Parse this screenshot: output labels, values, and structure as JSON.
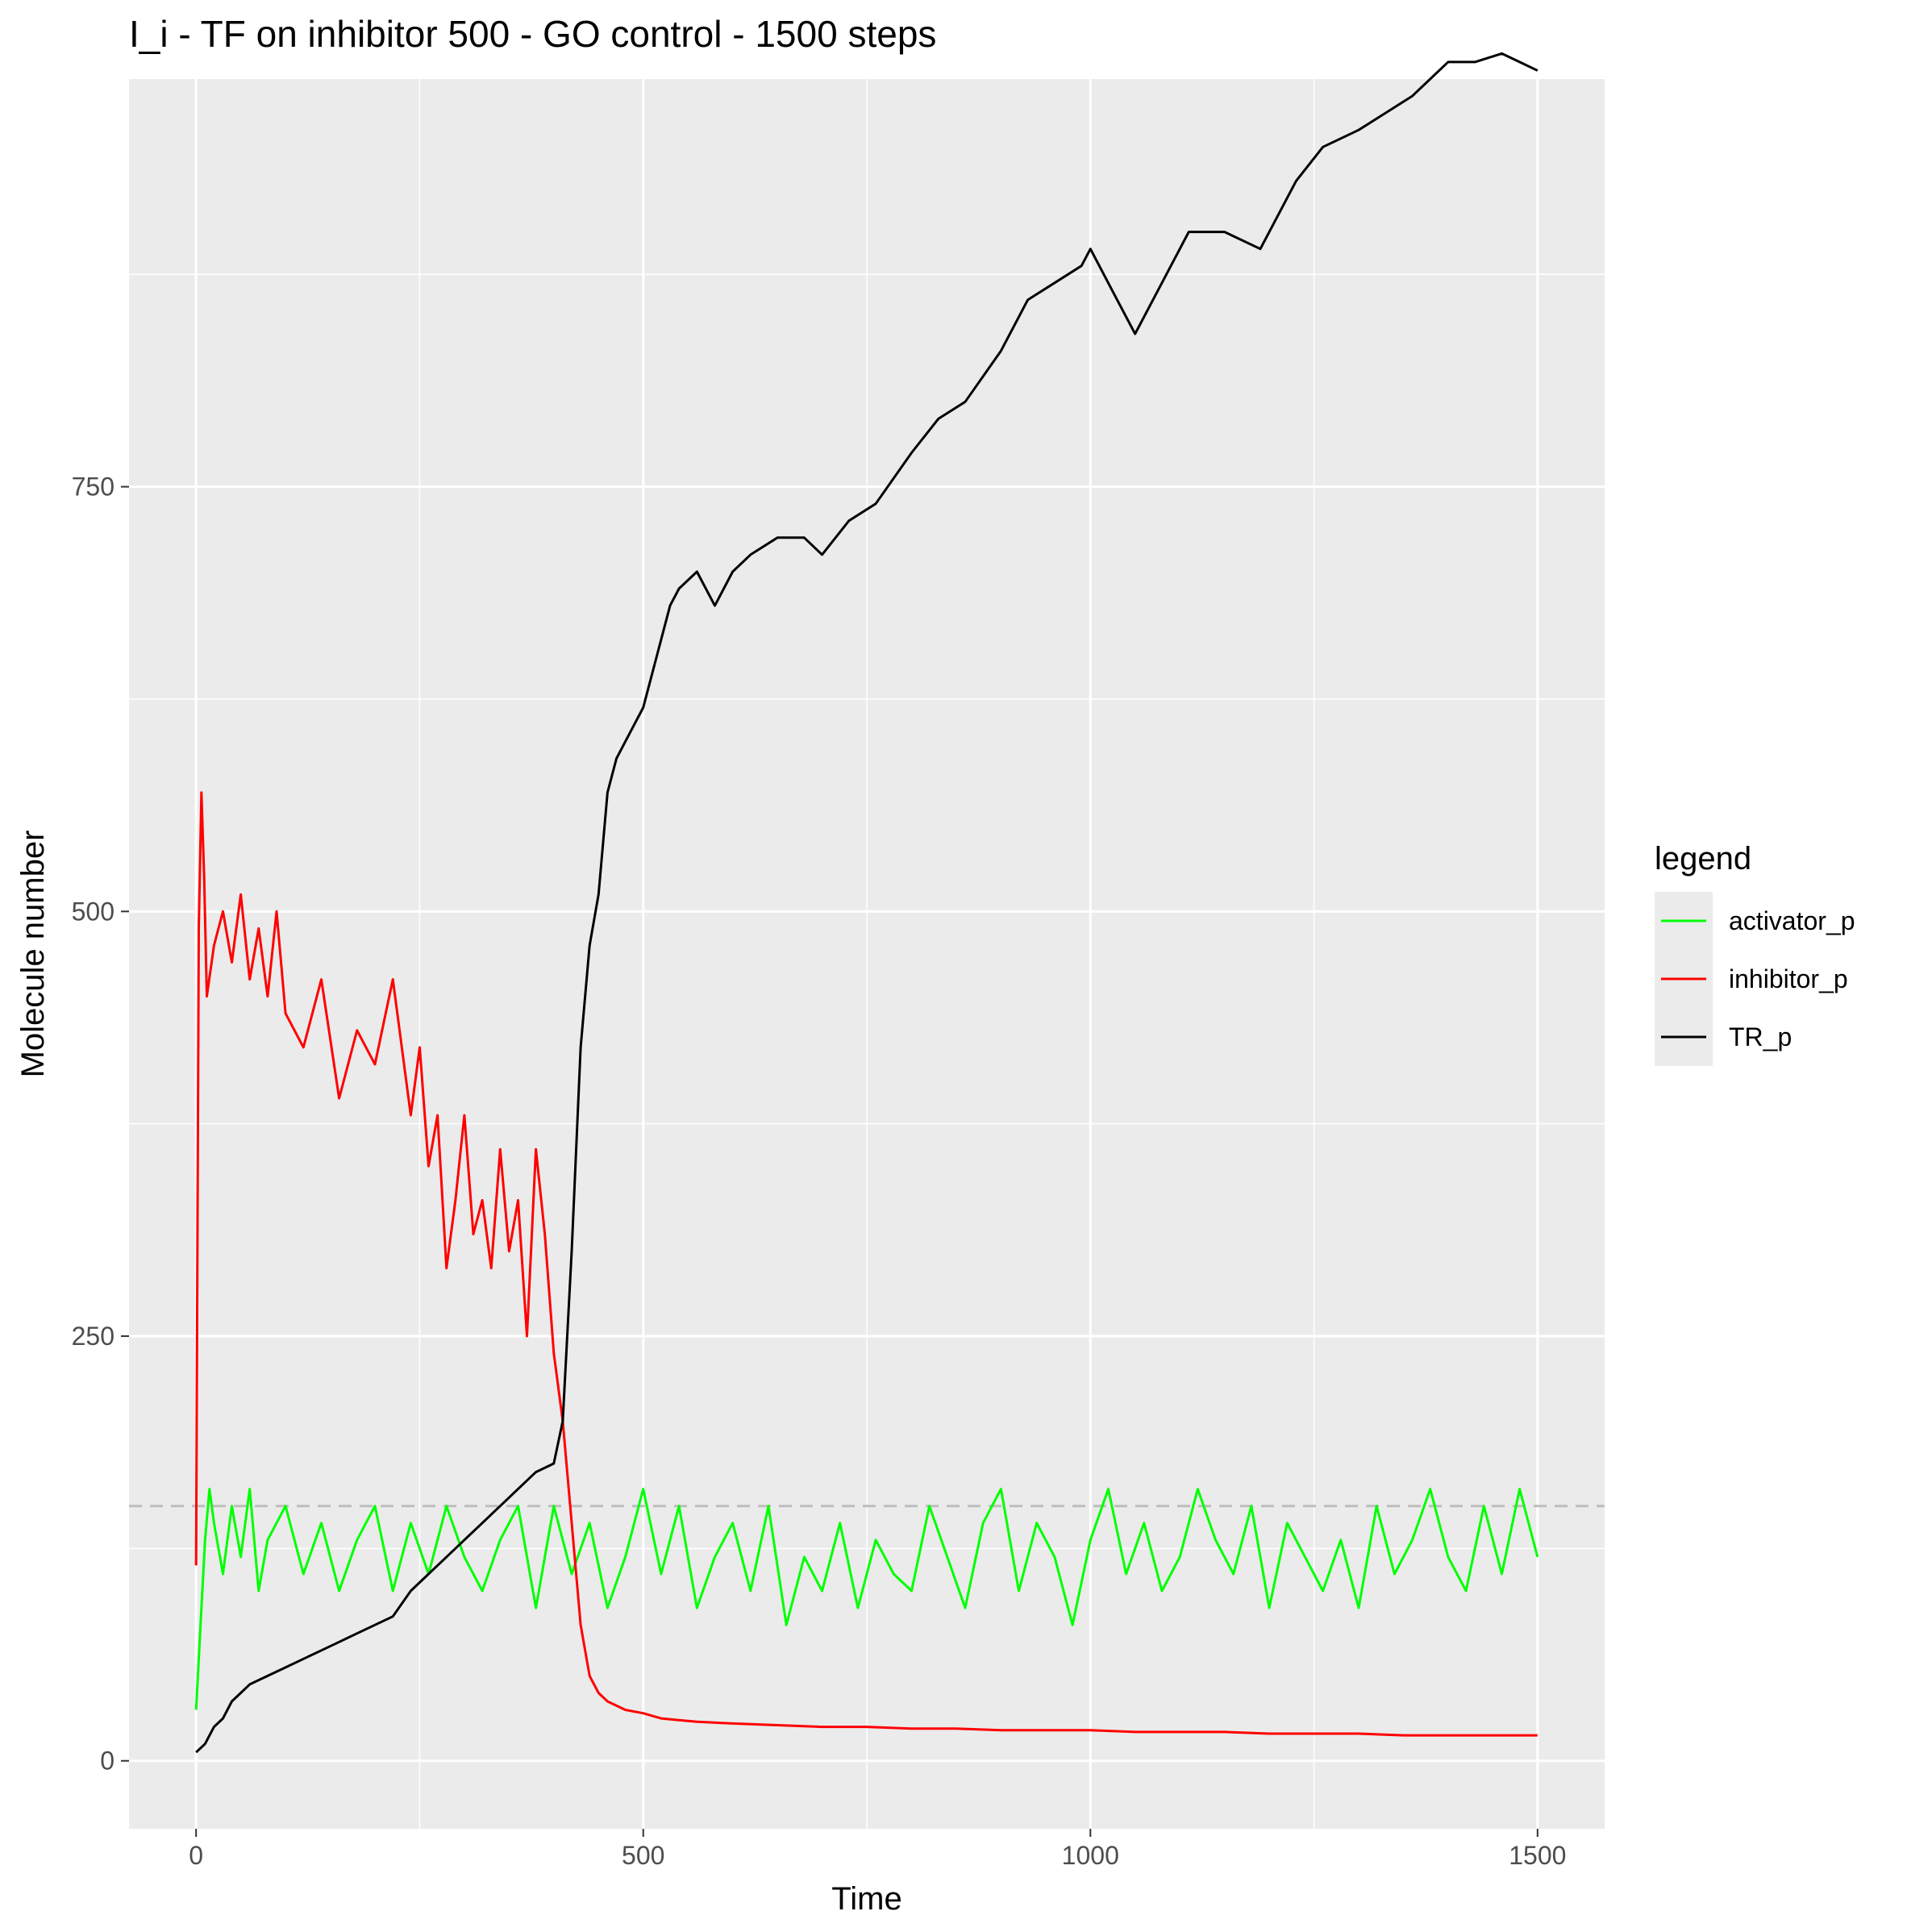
{
  "chart_data": {
    "type": "line",
    "title": "I_i - TF on inhibitor 500 - GO control - 1500 steps",
    "xlabel": "Time",
    "ylabel": "Molecule number",
    "xlim": [
      -75,
      1575
    ],
    "ylim": [
      -40,
      990
    ],
    "x_ticks": [
      0,
      500,
      1000,
      1500
    ],
    "y_ticks": [
      0,
      250,
      500,
      750
    ],
    "x_tick_labels": [
      "0",
      "500",
      "1000",
      "1500"
    ],
    "y_tick_labels": [
      "0",
      "250",
      "500",
      "750"
    ],
    "grid": true,
    "reference_line": {
      "y": 150,
      "style": "dashed",
      "color": "#bdbdbd"
    },
    "legend": {
      "title": "legend",
      "position": "right",
      "entries": [
        {
          "label": "activator_p",
          "color": "#00ff00"
        },
        {
          "label": "inhibitor_p",
          "color": "#ff0000"
        },
        {
          "label": "TR_p",
          "color": "#000000"
        }
      ]
    },
    "series": [
      {
        "name": "activator_p",
        "color": "#00ff00",
        "x": [
          0,
          5,
          10,
          15,
          20,
          30,
          40,
          50,
          60,
          70,
          80,
          100,
          120,
          140,
          160,
          180,
          200,
          220,
          240,
          260,
          280,
          300,
          320,
          340,
          360,
          380,
          400,
          420,
          440,
          460,
          480,
          500,
          520,
          540,
          560,
          580,
          600,
          620,
          640,
          660,
          680,
          700,
          720,
          740,
          760,
          780,
          800,
          820,
          840,
          860,
          880,
          900,
          920,
          940,
          960,
          980,
          1000,
          1020,
          1040,
          1060,
          1080,
          1100,
          1120,
          1140,
          1160,
          1180,
          1200,
          1220,
          1240,
          1260,
          1280,
          1300,
          1320,
          1340,
          1360,
          1380,
          1400,
          1420,
          1440,
          1460,
          1480,
          1500
        ],
        "y": [
          30,
          80,
          130,
          160,
          140,
          110,
          150,
          120,
          160,
          100,
          130,
          150,
          110,
          140,
          100,
          130,
          150,
          100,
          140,
          110,
          150,
          120,
          100,
          130,
          150,
          90,
          150,
          110,
          140,
          90,
          120,
          160,
          110,
          150,
          90,
          120,
          140,
          100,
          150,
          80,
          120,
          100,
          140,
          90,
          130,
          110,
          100,
          150,
          120,
          90,
          140,
          160,
          100,
          140,
          120,
          80,
          130,
          160,
          110,
          140,
          100,
          120,
          160,
          130,
          110,
          150,
          90,
          140,
          120,
          100,
          130,
          90,
          150,
          110,
          130,
          160,
          120,
          100,
          150,
          110,
          160,
          120
        ]
      },
      {
        "name": "inhibitor_p",
        "color": "#ff0000",
        "x": [
          0,
          3,
          6,
          9,
          12,
          20,
          30,
          40,
          50,
          60,
          70,
          80,
          90,
          100,
          120,
          140,
          160,
          180,
          200,
          220,
          240,
          250,
          260,
          270,
          280,
          290,
          300,
          310,
          320,
          330,
          340,
          350,
          360,
          370,
          380,
          390,
          400,
          410,
          420,
          430,
          440,
          450,
          460,
          480,
          500,
          520,
          540,
          560,
          600,
          650,
          700,
          750,
          800,
          850,
          900,
          950,
          1000,
          1050,
          1100,
          1150,
          1200,
          1250,
          1300,
          1350,
          1400,
          1450,
          1500
        ],
        "y": [
          115,
          490,
          570,
          520,
          450,
          480,
          500,
          470,
          510,
          460,
          490,
          450,
          500,
          440,
          420,
          460,
          390,
          430,
          410,
          460,
          380,
          420,
          350,
          380,
          290,
          330,
          380,
          310,
          330,
          290,
          360,
          300,
          330,
          250,
          360,
          310,
          240,
          200,
          140,
          80,
          50,
          40,
          35,
          30,
          28,
          25,
          24,
          23,
          22,
          21,
          20,
          20,
          19,
          19,
          18,
          18,
          18,
          17,
          17,
          17,
          16,
          16,
          16,
          15,
          15,
          15,
          15
        ]
      },
      {
        "name": "TR_p",
        "color": "#000000",
        "x": [
          0,
          10,
          20,
          30,
          40,
          50,
          60,
          80,
          100,
          120,
          140,
          160,
          180,
          200,
          220,
          240,
          260,
          280,
          300,
          320,
          340,
          360,
          380,
          400,
          410,
          420,
          430,
          440,
          450,
          460,
          470,
          480,
          490,
          500,
          510,
          520,
          530,
          540,
          560,
          580,
          600,
          620,
          650,
          680,
          700,
          730,
          760,
          800,
          830,
          860,
          900,
          930,
          960,
          990,
          1000,
          1030,
          1050,
          1080,
          1110,
          1150,
          1190,
          1230,
          1260,
          1300,
          1330,
          1360,
          1380,
          1400,
          1430,
          1460,
          1480,
          1500
        ],
        "y": [
          5,
          10,
          20,
          25,
          35,
          40,
          45,
          50,
          55,
          60,
          65,
          70,
          75,
          80,
          85,
          100,
          110,
          120,
          130,
          140,
          150,
          160,
          170,
          175,
          200,
          300,
          420,
          480,
          510,
          570,
          590,
          600,
          610,
          620,
          640,
          660,
          680,
          690,
          700,
          680,
          700,
          710,
          720,
          720,
          710,
          730,
          740,
          770,
          790,
          800,
          830,
          860,
          870,
          880,
          890,
          860,
          840,
          870,
          900,
          900,
          890,
          930,
          950,
          960,
          970,
          980,
          990,
          1000,
          1000,
          1005,
          1000,
          995
        ]
      }
    ]
  }
}
